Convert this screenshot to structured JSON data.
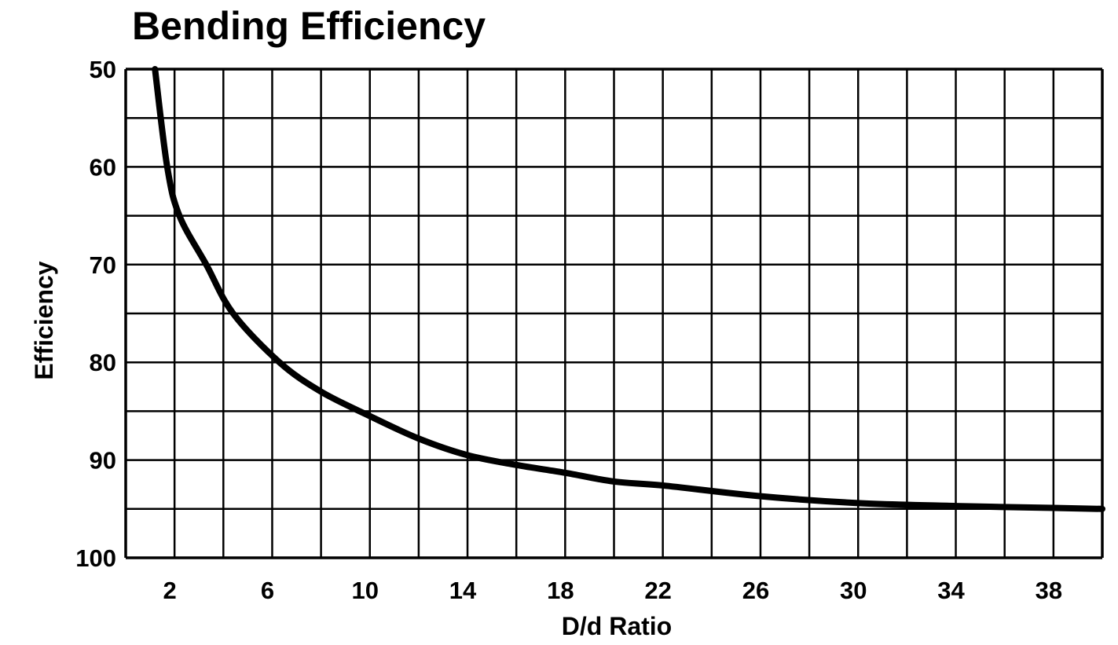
{
  "chart_data": {
    "type": "line",
    "title": "Bending Efficiency",
    "xlabel": "D/d Ratio",
    "ylabel": "Efficiency",
    "xlim": [
      0,
      40
    ],
    "ylim": [
      50,
      100
    ],
    "y_inverted": true,
    "grid": true,
    "x_grid_step": 2,
    "y_grid_step": 5,
    "x_ticks": [
      2,
      6,
      10,
      14,
      18,
      22,
      26,
      30,
      34,
      38
    ],
    "y_ticks": [
      50,
      60,
      70,
      80,
      90,
      100
    ],
    "line_color": "#000000",
    "series": [
      {
        "x": [
          1.2,
          1.7,
          2.2,
          3.3,
          4.4,
          6.3,
          8,
          10,
          12,
          14,
          16,
          18,
          20,
          22,
          26,
          30,
          34,
          38,
          40
        ],
        "y": [
          50,
          60,
          65,
          70,
          75,
          80,
          83,
          85.5,
          87.8,
          89.5,
          90.5,
          91.3,
          92.2,
          92.6,
          93.7,
          94.4,
          94.7,
          94.9,
          95
        ]
      }
    ]
  }
}
